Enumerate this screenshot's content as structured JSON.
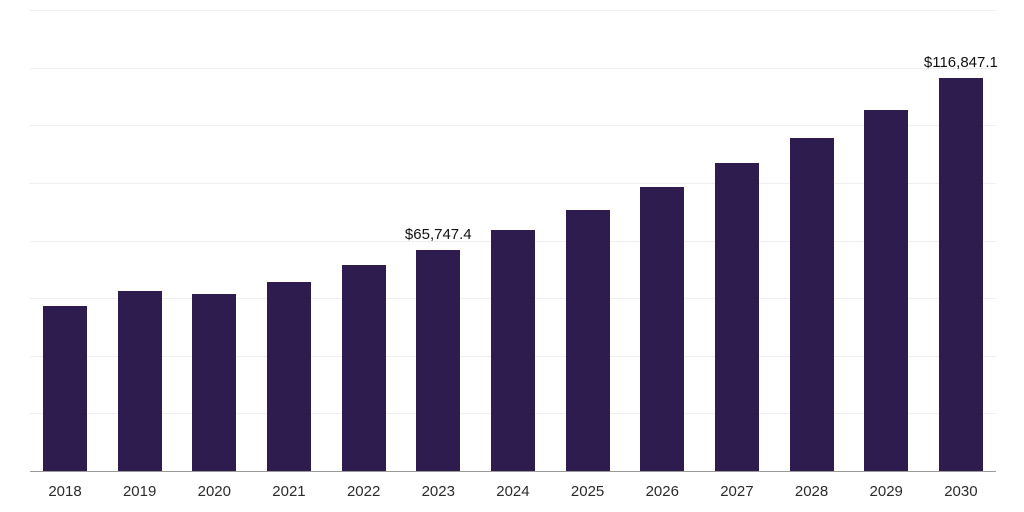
{
  "chart_data": {
    "type": "bar",
    "title": "",
    "xlabel": "",
    "ylabel": "",
    "categories": [
      "2018",
      "2019",
      "2020",
      "2021",
      "2022",
      "2023",
      "2024",
      "2025",
      "2026",
      "2027",
      "2028",
      "2029",
      "2030"
    ],
    "values": [
      48900,
      53400,
      52500,
      56100,
      61100,
      65747.4,
      71500,
      77700,
      84500,
      91600,
      99100,
      107400,
      116847.1
    ],
    "data_labels": [
      "",
      "",
      "",
      "",
      "",
      "$65,747.4",
      "",
      "",
      "",
      "",
      "",
      "",
      "$116,847.1"
    ],
    "ylim": [
      0,
      137000
    ],
    "grid": "horizontal",
    "grid_divisions": 8,
    "legend": "none",
    "bar_color": "#2f1c4f",
    "axis_line_color": "#9a9a9a",
    "gridline_color": "#efefef",
    "tick_label_color": "#2b2b2b",
    "data_label_color": "#111111"
  }
}
